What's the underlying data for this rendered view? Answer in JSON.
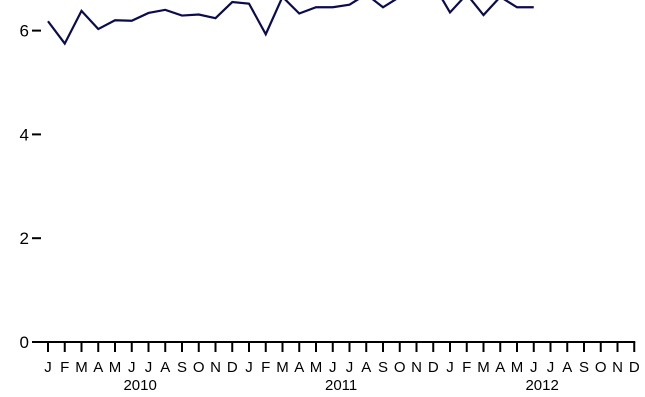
{
  "chart_data": {
    "type": "line",
    "title": "",
    "xlabel": "",
    "ylabel": "",
    "ylim": [
      0,
      6.7
    ],
    "yticks": [
      0,
      2,
      4,
      6
    ],
    "line_color": "#0b0b4f",
    "x_month_labels": [
      "J",
      "F",
      "M",
      "A",
      "M",
      "J",
      "J",
      "A",
      "S",
      "O",
      "N",
      "D",
      "J",
      "F",
      "M",
      "A",
      "M",
      "J",
      "J",
      "A",
      "S",
      "O",
      "N",
      "D",
      "J",
      "F",
      "M",
      "A",
      "M",
      "J",
      "J",
      "A",
      "S",
      "O",
      "N",
      "D"
    ],
    "x_year_labels": [
      "2010",
      "2011",
      "2012"
    ],
    "series": [
      {
        "name": "",
        "x": [
          "2010-01",
          "2010-02",
          "2010-03",
          "2010-04",
          "2010-05",
          "2010-06",
          "2010-07",
          "2010-08",
          "2010-09",
          "2010-10",
          "2010-11",
          "2010-12",
          "2011-01",
          "2011-02",
          "2011-03",
          "2011-04",
          "2011-05",
          "2011-06",
          "2011-07",
          "2011-08",
          "2011-09",
          "2011-10",
          "2011-11",
          "2011-12",
          "2012-01",
          "2012-02",
          "2012-03",
          "2012-04",
          "2012-05",
          "2012-06"
        ],
        "values": [
          6.18,
          5.75,
          6.38,
          6.03,
          6.2,
          6.19,
          6.34,
          6.4,
          6.29,
          6.31,
          6.24,
          6.55,
          6.52,
          5.93,
          6.65,
          6.33,
          6.45,
          6.45,
          6.5,
          6.7,
          6.45,
          6.65,
          6.9,
          6.9,
          6.35,
          6.7,
          6.3,
          6.65,
          6.45,
          6.45
        ]
      }
    ]
  }
}
